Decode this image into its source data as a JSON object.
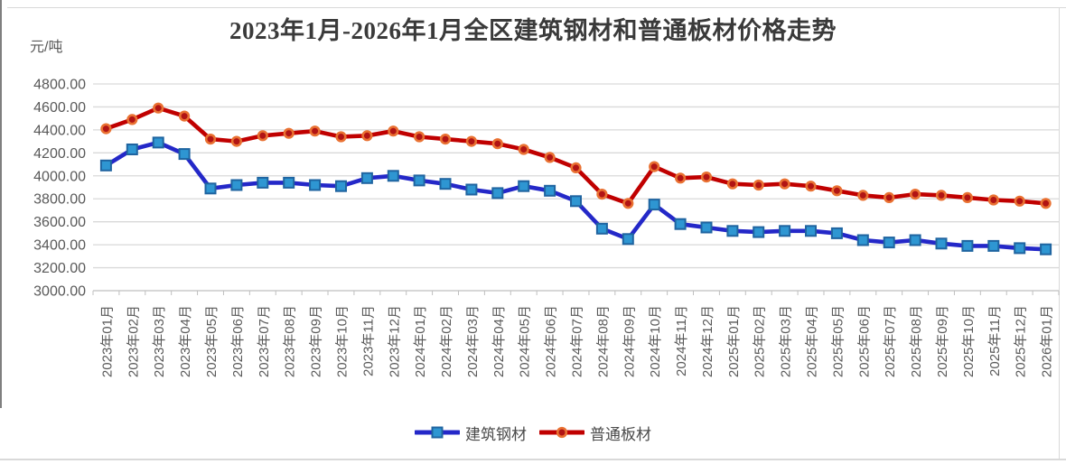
{
  "chart_data": {
    "type": "line",
    "title": "2023年1月-2026年1月全区建筑钢材和普通板材价格走势",
    "unit_label": "元/吨",
    "legend_position": "bottom",
    "grid": true,
    "colors": {
      "grid_color": "#d9d9d9",
      "axis_color": "#bfbfbf",
      "tick_label_color": "#595959",
      "title_color": "#3a3a3a"
    },
    "y_axis": {
      "min": 3000,
      "max": 4800,
      "step": 200,
      "tick_labels": [
        "3000.00",
        "3200.00",
        "3400.00",
        "3600.00",
        "3800.00",
        "4000.00",
        "4200.00",
        "4400.00",
        "4600.00",
        "4800.00"
      ]
    },
    "categories": [
      "2023年01月",
      "2023年02月",
      "2023年03月",
      "2023年04月",
      "2023年05月",
      "2023年06月",
      "2023年07月",
      "2023年08月",
      "2023年09月",
      "2023年10月",
      "2023年11月",
      "2023年12月",
      "2024年01月",
      "2024年02月",
      "2024年03月",
      "2024年04月",
      "2024年05月",
      "2024年06月",
      "2024年07月",
      "2024年08月",
      "2024年09月",
      "2024年10月",
      "2024年11月",
      "2024年12月",
      "2025年01月",
      "2025年02月",
      "2025年03月",
      "2025年04月",
      "2025年05月",
      "2025年06月",
      "2025年07月",
      "2025年08月",
      "2025年09月",
      "2025年10月",
      "2025年11月",
      "2025年12月",
      "2026年01月"
    ],
    "series": [
      {
        "name": "建筑钢材",
        "color": "#2428c8",
        "marker": "square",
        "marker_fill": "#2e96d2",
        "marker_stroke": "#1f64a0",
        "values": [
          4090,
          4230,
          4290,
          4190,
          3890,
          3920,
          3940,
          3940,
          3920,
          3910,
          3980,
          4000,
          3960,
          3930,
          3880,
          3850,
          3910,
          3870,
          3780,
          3540,
          3450,
          3750,
          3580,
          3550,
          3520,
          3510,
          3520,
          3520,
          3500,
          3440,
          3420,
          3440,
          3410,
          3390,
          3390,
          3370,
          3360
        ]
      },
      {
        "name": "普通板材",
        "color": "#c00000",
        "marker": "circle",
        "marker_fill": "#b11414",
        "marker_stroke": "#e97132",
        "values": [
          4410,
          4490,
          4590,
          4520,
          4320,
          4300,
          4350,
          4370,
          4390,
          4340,
          4350,
          4390,
          4340,
          4320,
          4300,
          4280,
          4230,
          4160,
          4070,
          3840,
          3760,
          4080,
          3980,
          3990,
          3930,
          3920,
          3930,
          3910,
          3870,
          3830,
          3810,
          3840,
          3830,
          3810,
          3790,
          3780,
          3760
        ]
      }
    ]
  }
}
